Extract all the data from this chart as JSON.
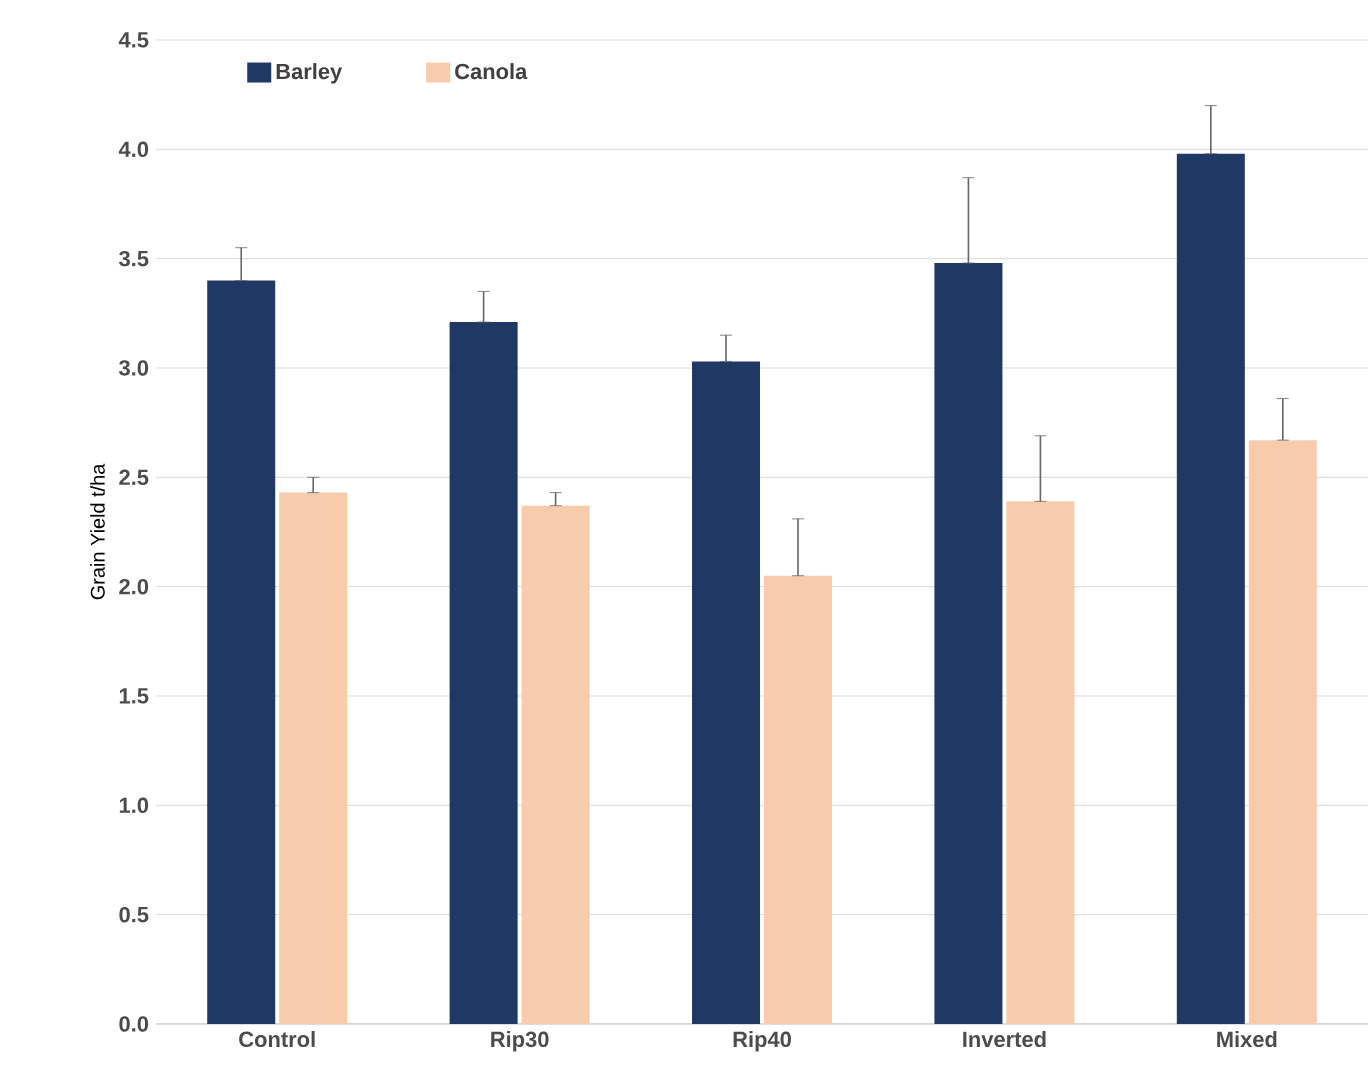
{
  "chart_data": {
    "type": "bar",
    "ylabel": "Grain Yield t/ha",
    "categories": [
      "Control",
      "Rip30",
      "Rip40",
      "Inverted",
      "Mixed"
    ],
    "series": [
      {
        "name": "Barley",
        "color": "#203864",
        "values": [
          3.4,
          3.21,
          3.03,
          3.48,
          3.98
        ],
        "errors": [
          [
            3.4,
            3.55
          ],
          [
            3.21,
            3.35
          ],
          [
            3.03,
            3.15
          ],
          [
            3.48,
            3.87
          ],
          [
            3.98,
            4.2
          ]
        ]
      },
      {
        "name": "Canola",
        "color": "#f8cbad",
        "values": [
          2.43,
          2.37,
          2.05,
          2.39,
          2.67
        ],
        "errors": [
          [
            2.43,
            2.5
          ],
          [
            2.37,
            2.43
          ],
          [
            2.05,
            2.31
          ],
          [
            2.39,
            2.69
          ],
          [
            2.67,
            2.86
          ]
        ]
      }
    ],
    "ylim": [
      0,
      4.5
    ],
    "yticks": [
      {
        "value": 0,
        "label": "0.0"
      },
      {
        "value": 0.5,
        "label": "0.5"
      },
      {
        "value": 1,
        "label": "1.0"
      },
      {
        "value": 1.5,
        "label": "1.5"
      },
      {
        "value": 2,
        "label": "2.0"
      },
      {
        "value": 2.5,
        "label": "2.5"
      },
      {
        "value": 3,
        "label": "3.0"
      },
      {
        "value": 3.5,
        "label": "3.5"
      },
      {
        "value": 4,
        "label": "4.0"
      },
      {
        "value": 4.5,
        "label": "4.5"
      }
    ],
    "grid": "y",
    "legend": "top left"
  }
}
